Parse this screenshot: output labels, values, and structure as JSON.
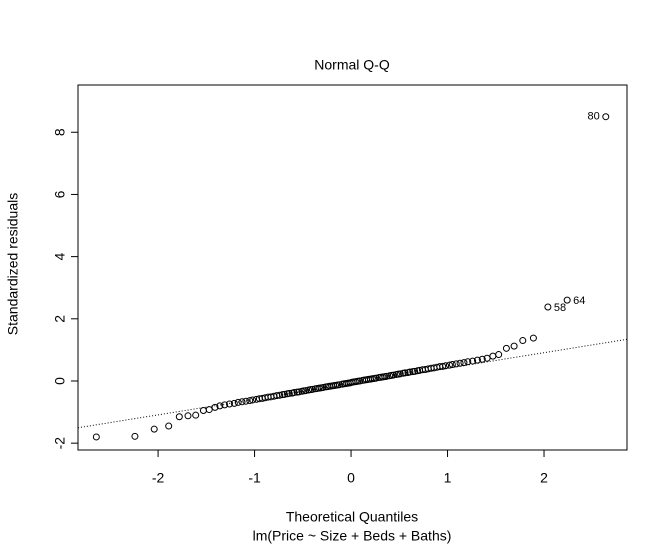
{
  "chart_data": {
    "type": "scatter",
    "title": "Normal Q-Q",
    "xlabel": "Theoretical Quantiles",
    "subtitle": "lm(Price ~ Size + Beds + Baths)",
    "ylabel": "Standardized residuals",
    "xlim": [
      -2.83,
      2.86
    ],
    "ylim": [
      -2.22,
      9.52
    ],
    "xticks": [
      -2,
      -1,
      0,
      1,
      2
    ],
    "yticks": [
      -2,
      0,
      2,
      4,
      6,
      8
    ],
    "reference_line": {
      "intercept": -0.09,
      "slope": 0.5
    },
    "annotations": [
      {
        "text": "58",
        "x": 2.04,
        "y": 2.38
      },
      {
        "text": "64",
        "x": 2.24,
        "y": 2.6
      },
      {
        "text": "80",
        "x": 2.64,
        "y": 8.5
      }
    ],
    "x": [
      -2.64,
      -2.24,
      -2.04,
      -1.89,
      -1.78,
      -1.69,
      -1.61,
      -1.53,
      -1.47,
      -1.41,
      -1.36,
      -1.31,
      -1.26,
      -1.21,
      -1.17,
      -1.13,
      -1.09,
      -1.05,
      -1.02,
      -0.98,
      -0.95,
      -0.92,
      -0.89,
      -0.86,
      -0.83,
      -0.8,
      -0.77,
      -0.74,
      -0.71,
      -0.69,
      -0.66,
      -0.64,
      -0.61,
      -0.59,
      -0.56,
      -0.54,
      -0.51,
      -0.49,
      -0.47,
      -0.44,
      -0.42,
      -0.4,
      -0.37,
      -0.35,
      -0.33,
      -0.31,
      -0.29,
      -0.26,
      -0.24,
      -0.22,
      -0.2,
      -0.18,
      -0.16,
      -0.14,
      -0.12,
      -0.09,
      -0.07,
      -0.05,
      -0.03,
      -0.01,
      0.01,
      0.03,
      0.05,
      0.07,
      0.09,
      0.12,
      0.14,
      0.16,
      0.18,
      0.2,
      0.22,
      0.24,
      0.26,
      0.29,
      0.31,
      0.33,
      0.35,
      0.37,
      0.4,
      0.42,
      0.44,
      0.47,
      0.49,
      0.51,
      0.54,
      0.56,
      0.59,
      0.61,
      0.64,
      0.66,
      0.69,
      0.71,
      0.74,
      0.77,
      0.8,
      0.83,
      0.86,
      0.89,
      0.92,
      0.95,
      0.98,
      1.02,
      1.05,
      1.09,
      1.13,
      1.17,
      1.21,
      1.26,
      1.31,
      1.36,
      1.41,
      1.47,
      1.53,
      1.61,
      1.69,
      1.78,
      1.89,
      2.04,
      2.24,
      2.64
    ],
    "y": [
      -1.8,
      -1.78,
      -1.55,
      -1.45,
      -1.15,
      -1.12,
      -1.1,
      -0.95,
      -0.92,
      -0.85,
      -0.8,
      -0.77,
      -0.74,
      -0.72,
      -0.69,
      -0.67,
      -0.65,
      -0.63,
      -0.61,
      -0.59,
      -0.57,
      -0.56,
      -0.54,
      -0.52,
      -0.51,
      -0.49,
      -0.47,
      -0.46,
      -0.44,
      -0.43,
      -0.41,
      -0.4,
      -0.39,
      -0.37,
      -0.36,
      -0.35,
      -0.33,
      -0.32,
      -0.31,
      -0.29,
      -0.28,
      -0.27,
      -0.25,
      -0.24,
      -0.23,
      -0.22,
      -0.21,
      -0.19,
      -0.18,
      -0.17,
      -0.16,
      -0.15,
      -0.14,
      -0.13,
      -0.12,
      -0.1,
      -0.09,
      -0.08,
      -0.07,
      -0.06,
      -0.04,
      -0.03,
      -0.02,
      -0.01,
      0.0,
      0.02,
      0.03,
      0.04,
      0.05,
      0.06,
      0.07,
      0.08,
      0.09,
      0.11,
      0.12,
      0.13,
      0.14,
      0.15,
      0.17,
      0.18,
      0.19,
      0.21,
      0.22,
      0.23,
      0.25,
      0.26,
      0.27,
      0.29,
      0.3,
      0.31,
      0.33,
      0.34,
      0.36,
      0.37,
      0.39,
      0.41,
      0.42,
      0.44,
      0.46,
      0.47,
      0.49,
      0.51,
      0.53,
      0.55,
      0.57,
      0.59,
      0.62,
      0.64,
      0.67,
      0.7,
      0.73,
      0.8,
      0.85,
      1.05,
      1.12,
      1.3,
      1.38,
      2.38,
      2.6,
      8.5
    ]
  }
}
